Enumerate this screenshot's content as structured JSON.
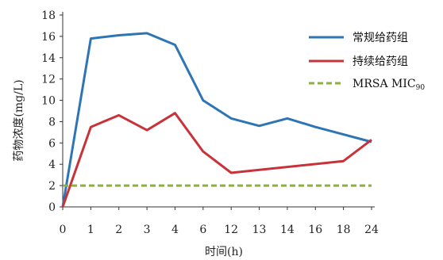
{
  "chart_data": {
    "type": "line",
    "title": "",
    "xlabel": "时间(h)",
    "ylabel": "药物浓度(mg/L)",
    "ylim": [
      0,
      18
    ],
    "yticks": [
      "0",
      "2",
      "4",
      "6",
      "8",
      "10",
      "12",
      "14",
      "16",
      "18"
    ],
    "categories": [
      "0",
      "1",
      "2",
      "3",
      "4",
      "6",
      "12",
      "13",
      "14",
      "16",
      "18",
      "24"
    ],
    "grid": false,
    "legend_position": "top-right",
    "series": [
      {
        "name": "常规给药组",
        "color": "#2e75b6",
        "style": "solid",
        "values": [
          0,
          15.8,
          16.1,
          16.3,
          15.2,
          10,
          8.3,
          7.6,
          8.3,
          7.5,
          6.8,
          6.1
        ]
      },
      {
        "name": "持续给药组",
        "color": "#c8333a",
        "style": "solid",
        "values": [
          0,
          7.5,
          8.6,
          7.2,
          8.8,
          5.2,
          3.2,
          null,
          null,
          null,
          4.3,
          6.3
        ],
        "x_positions": [
          0,
          1,
          2,
          3,
          4,
          5,
          6,
          null,
          null,
          null,
          10,
          11
        ]
      },
      {
        "name": "MRSA MIC",
        "name_subscript": "90",
        "color": "#8db040",
        "style": "dashed",
        "constant": 2
      }
    ]
  }
}
